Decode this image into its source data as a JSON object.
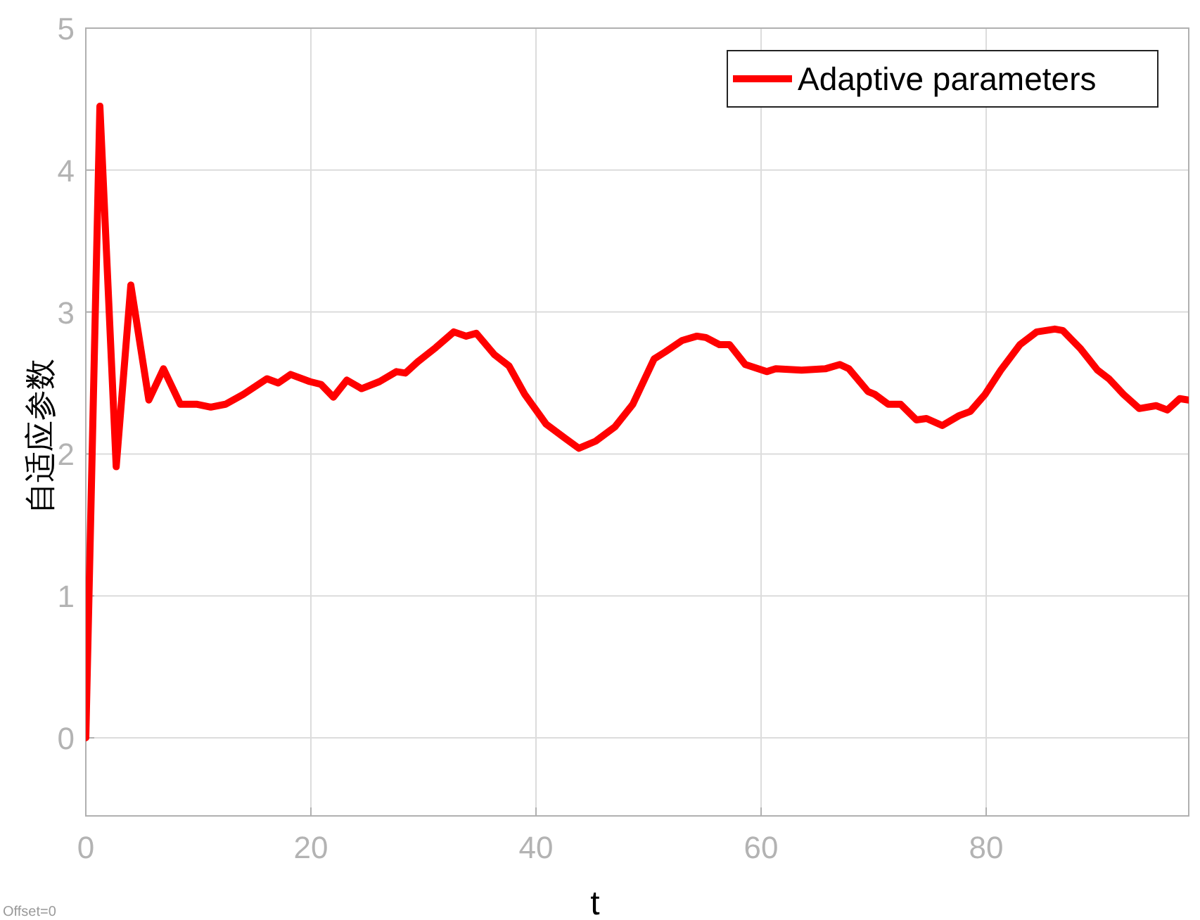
{
  "chart_data": {
    "type": "line",
    "xlabel": "t",
    "ylabel": "自适应参数",
    "xlim": [
      0,
      98
    ],
    "ylim": [
      -0.55,
      5
    ],
    "xticks": [
      0,
      20,
      40,
      60,
      80
    ],
    "yticks": [
      0,
      1,
      2,
      3,
      4,
      5
    ],
    "grid": true,
    "legend": "top right",
    "line_style": "solid",
    "marker": "none",
    "annotations": [
      "Offset=0"
    ],
    "series": [
      {
        "name": "Adaptive parameters",
        "color": "#ff0000",
        "x": [
          0,
          1.25,
          2.7,
          4.0,
          5.6,
          6.9,
          8.4,
          9.9,
          11.1,
          12.4,
          14,
          16.1,
          17.1,
          18.2,
          19.9,
          20.9,
          22,
          23.2,
          24.5,
          26.1,
          27.6,
          28.4,
          29.5,
          31.1,
          32.7,
          33.8,
          34.7,
          36.3,
          37.6,
          39.0,
          40.9,
          42.6,
          43.8,
          45.3,
          47,
          48.6,
          50.5,
          51.5,
          53,
          54.3,
          55.1,
          56.3,
          57.2,
          58.6,
          60.5,
          61.3,
          63.6,
          65.7,
          67,
          67.8,
          69.5,
          70.1,
          71.3,
          72.4,
          73.8,
          74.7,
          76.1,
          77.6,
          78.6,
          79.9,
          81.3,
          83,
          84.5,
          86.1,
          86.8,
          88.4,
          89.9,
          90.9,
          92.2,
          93.6,
          95.1,
          96.1,
          97.2,
          98
        ],
        "values": [
          0,
          4.45,
          1.91,
          3.19,
          2.38,
          2.6,
          2.35,
          2.35,
          2.33,
          2.35,
          2.42,
          2.53,
          2.5,
          2.56,
          2.51,
          2.49,
          2.4,
          2.52,
          2.46,
          2.51,
          2.58,
          2.57,
          2.65,
          2.75,
          2.86,
          2.83,
          2.85,
          2.7,
          2.62,
          2.42,
          2.21,
          2.11,
          2.04,
          2.09,
          2.19,
          2.35,
          2.67,
          2.72,
          2.8,
          2.83,
          2.82,
          2.77,
          2.77,
          2.63,
          2.58,
          2.6,
          2.59,
          2.6,
          2.63,
          2.6,
          2.44,
          2.42,
          2.35,
          2.35,
          2.24,
          2.25,
          2.2,
          2.27,
          2.3,
          2.42,
          2.59,
          2.77,
          2.86,
          2.88,
          2.87,
          2.74,
          2.59,
          2.53,
          2.42,
          2.32,
          2.34,
          2.31,
          2.39,
          2.38
        ]
      }
    ]
  }
}
